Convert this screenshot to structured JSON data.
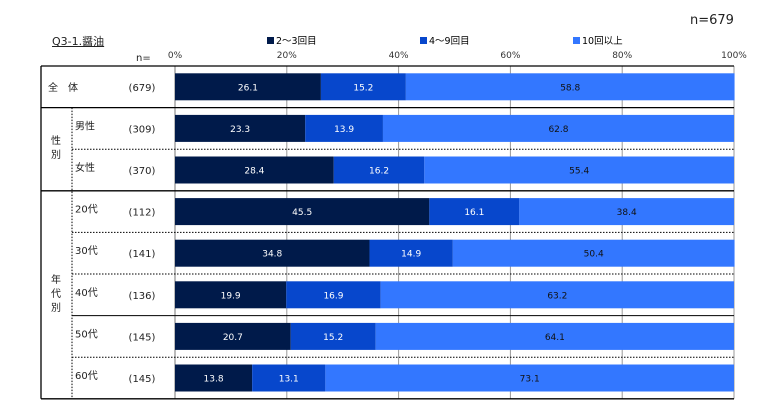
{
  "title": "Q3-1.醤油",
  "n_total": "n=679",
  "n_label": "n=",
  "chart_data": {
    "type": "bar",
    "orientation": "horizontal-stacked-100",
    "title": "Q3-1.醤油",
    "xlim": [
      0,
      100
    ],
    "x_ticks": [
      "0%",
      "20%",
      "40%",
      "60%",
      "80%",
      "100%"
    ],
    "series": [
      {
        "name": "2〜3回目",
        "color": "#001a4a",
        "label_color": "#ffffff",
        "values": [
          26.1,
          23.3,
          28.4,
          45.5,
          34.8,
          19.9,
          20.7,
          13.8
        ]
      },
      {
        "name": "4〜9回目",
        "color": "#0747cc",
        "label_color": "#ffffff",
        "values": [
          15.2,
          13.9,
          16.2,
          16.1,
          14.9,
          16.9,
          15.2,
          13.1
        ]
      },
      {
        "name": "10回以上",
        "color": "#3377ff",
        "label_color": "#111111",
        "values": [
          58.8,
          62.8,
          55.4,
          38.4,
          50.4,
          63.2,
          64.1,
          73.1
        ]
      }
    ],
    "groups": [
      {
        "label": "全　体",
        "rows": [
          0
        ]
      },
      {
        "label": "性別",
        "rows": [
          1,
          2
        ]
      },
      {
        "label": "年代別",
        "rows": [
          3,
          4,
          5,
          6,
          7
        ]
      }
    ],
    "categories": [
      "全　体",
      "男性",
      "女性",
      "20代",
      "30代",
      "40代",
      "50代",
      "60代"
    ],
    "n": [
      "(679)",
      "(309)",
      "(370)",
      "(112)",
      "(141)",
      "(136)",
      "(145)",
      "(145)"
    ]
  }
}
